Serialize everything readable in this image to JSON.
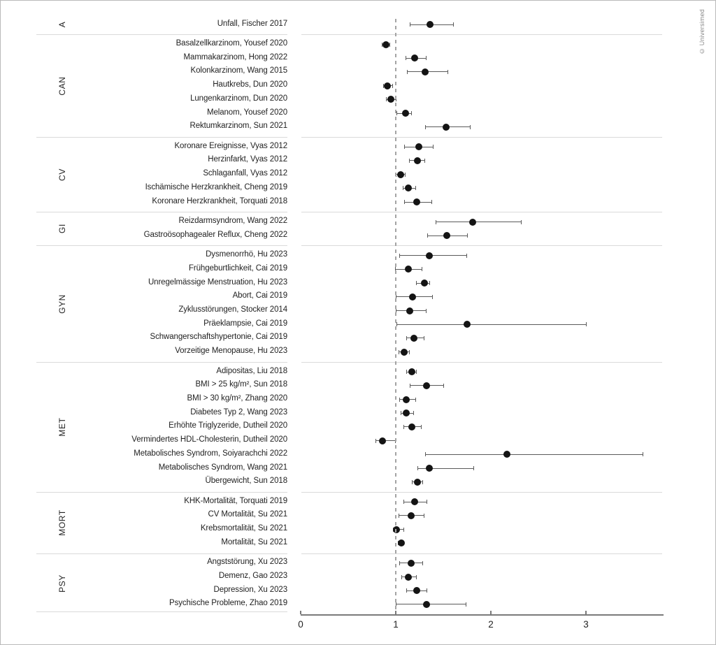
{
  "figure": {
    "copyright": "© Universimed"
  },
  "chart_data": {
    "type": "scatter",
    "subtype": "forest-plot",
    "orientation": "horizontal",
    "xlim": [
      0,
      3.82
    ],
    "x_ticks": [
      0,
      1,
      2,
      3
    ],
    "reference_line_x": 1,
    "grid": "off",
    "point_color": "#141414",
    "sections": [
      {
        "category": "A",
        "rows": [
          {
            "label": "Unfall, Fischer 2017",
            "value": 1.36,
            "ci_low": 1.15,
            "ci_high": 1.61
          }
        ]
      },
      {
        "category": "CAN",
        "rows": [
          {
            "label": "Basalzellkarzinom, Yousef 2020",
            "value": 0.9,
            "ci_low": 0.85,
            "ci_high": 0.94
          },
          {
            "label": "Mammakarzinom, Hong 2022",
            "value": 1.2,
            "ci_low": 1.1,
            "ci_high": 1.32
          },
          {
            "label": "Kolonkarzinom, Wang 2015",
            "value": 1.31,
            "ci_low": 1.12,
            "ci_high": 1.55
          },
          {
            "label": "Hautkrebs, Dun 2020",
            "value": 0.91,
            "ci_low": 0.87,
            "ci_high": 0.97
          },
          {
            "label": "Lungenkarzinom, Dun 2020",
            "value": 0.95,
            "ci_low": 0.9,
            "ci_high": 1.01
          },
          {
            "label": "Melanom, Yousef 2020",
            "value": 1.1,
            "ci_low": 1.01,
            "ci_high": 1.17
          },
          {
            "label": "Rektumkarzinom, Sun 2021",
            "value": 1.53,
            "ci_low": 1.31,
            "ci_high": 1.79
          }
        ]
      },
      {
        "category": "CV",
        "rows": [
          {
            "label": "Koronare Ereignisse, Vyas 2012",
            "value": 1.24,
            "ci_low": 1.09,
            "ci_high": 1.4
          },
          {
            "label": "Herzinfarkt, Vyas 2012",
            "value": 1.23,
            "ci_low": 1.14,
            "ci_high": 1.31
          },
          {
            "label": "Schlaganfall, Vyas 2012",
            "value": 1.05,
            "ci_low": 1.0,
            "ci_high": 1.1
          },
          {
            "label": "Ischämische Herzkrankheit, Cheng 2019",
            "value": 1.13,
            "ci_low": 1.07,
            "ci_high": 1.21
          },
          {
            "label": "Koronare Herzkrankheit, Torquati 2018",
            "value": 1.22,
            "ci_low": 1.09,
            "ci_high": 1.38
          }
        ]
      },
      {
        "category": "GI",
        "rows": [
          {
            "label": "Reizdarmsyndrom, Wang 2022",
            "value": 1.81,
            "ci_low": 1.42,
            "ci_high": 2.32
          },
          {
            "label": "Gastroösophagealer Reflux, Cheng 2022",
            "value": 1.54,
            "ci_low": 1.33,
            "ci_high": 1.76
          }
        ]
      },
      {
        "category": "GYN",
        "rows": [
          {
            "label": "Dysmenorrhö, Hu 2023",
            "value": 1.35,
            "ci_low": 1.04,
            "ci_high": 1.75
          },
          {
            "label": "Frühgeburtlichkeit, Cai 2019",
            "value": 1.13,
            "ci_low": 0.99,
            "ci_high": 1.28
          },
          {
            "label": "Unregelmässige Menstruation, Hu 2023",
            "value": 1.3,
            "ci_low": 1.21,
            "ci_high": 1.36
          },
          {
            "label": "Abort, Cai 2019",
            "value": 1.18,
            "ci_low": 1.0,
            "ci_high": 1.39
          },
          {
            "label": "Zyklusstörungen, Stocker 2014",
            "value": 1.15,
            "ci_low": 1.0,
            "ci_high": 1.32
          },
          {
            "label": "Präeklampsie, Cai 2019",
            "value": 1.75,
            "ci_low": 1.01,
            "ci_high": 3.01
          },
          {
            "label": "Schwangerschaftshypertonie, Cai 2019",
            "value": 1.19,
            "ci_low": 1.11,
            "ci_high": 1.3
          },
          {
            "label": "Vorzeitige Menopause, Hu 2023",
            "value": 1.09,
            "ci_low": 1.03,
            "ci_high": 1.15
          }
        ]
      },
      {
        "category": "MET",
        "rows": [
          {
            "label": "Adipositas, Liu 2018",
            "value": 1.17,
            "ci_low": 1.11,
            "ci_high": 1.22
          },
          {
            "label": "BMI > 25 kg/m², Sun 2018",
            "value": 1.32,
            "ci_low": 1.15,
            "ci_high": 1.51
          },
          {
            "label": "BMI > 30 kg/m², Zhang 2020",
            "value": 1.11,
            "ci_low": 1.04,
            "ci_high": 1.21
          },
          {
            "label": "Diabetes Typ 2, Wang 2023",
            "value": 1.11,
            "ci_low": 1.05,
            "ci_high": 1.19
          },
          {
            "label": "Erhöhte Triglyzeride, Dutheil 2020",
            "value": 1.17,
            "ci_low": 1.08,
            "ci_high": 1.27
          },
          {
            "label": "Vermindertes HDL-Cholesterin, Dutheil 2020",
            "value": 0.86,
            "ci_low": 0.79,
            "ci_high": 1.0
          },
          {
            "label": "Metabolisches Syndrom, Soiyarachchi 2022",
            "value": 2.17,
            "ci_low": 1.31,
            "ci_high": 3.6
          },
          {
            "label": "Metabolisches Syndrom, Wang 2021",
            "value": 1.35,
            "ci_low": 1.23,
            "ci_high": 1.82
          },
          {
            "label": "Übergewicht, Sun 2018",
            "value": 1.23,
            "ci_low": 1.17,
            "ci_high": 1.29
          }
        ]
      },
      {
        "category": "MORT",
        "rows": [
          {
            "label": "KHK-Mortalität, Torquati 2019",
            "value": 1.2,
            "ci_low": 1.08,
            "ci_high": 1.33
          },
          {
            "label": "CV Mortalität, Su 2021",
            "value": 1.16,
            "ci_low": 1.03,
            "ci_high": 1.3
          },
          {
            "label": "Krebsmortalität, Su 2021",
            "value": 1.01,
            "ci_low": 0.97,
            "ci_high": 1.09
          },
          {
            "label": "Mortalität, Su 2021",
            "value": 1.06,
            "ci_low": 1.02,
            "ci_high": 1.09
          }
        ]
      },
      {
        "category": "PSY",
        "rows": [
          {
            "label": "Angststörung, Xu 2023",
            "value": 1.16,
            "ci_low": 1.04,
            "ci_high": 1.29
          },
          {
            "label": "Demenz, Gao 2023",
            "value": 1.13,
            "ci_low": 1.06,
            "ci_high": 1.22
          },
          {
            "label": "Depression, Xu 2023",
            "value": 1.22,
            "ci_low": 1.11,
            "ci_high": 1.33
          },
          {
            "label": "Psychische Probleme, Zhao 2019",
            "value": 1.32,
            "ci_low": 1.0,
            "ci_high": 1.74
          }
        ]
      }
    ]
  }
}
